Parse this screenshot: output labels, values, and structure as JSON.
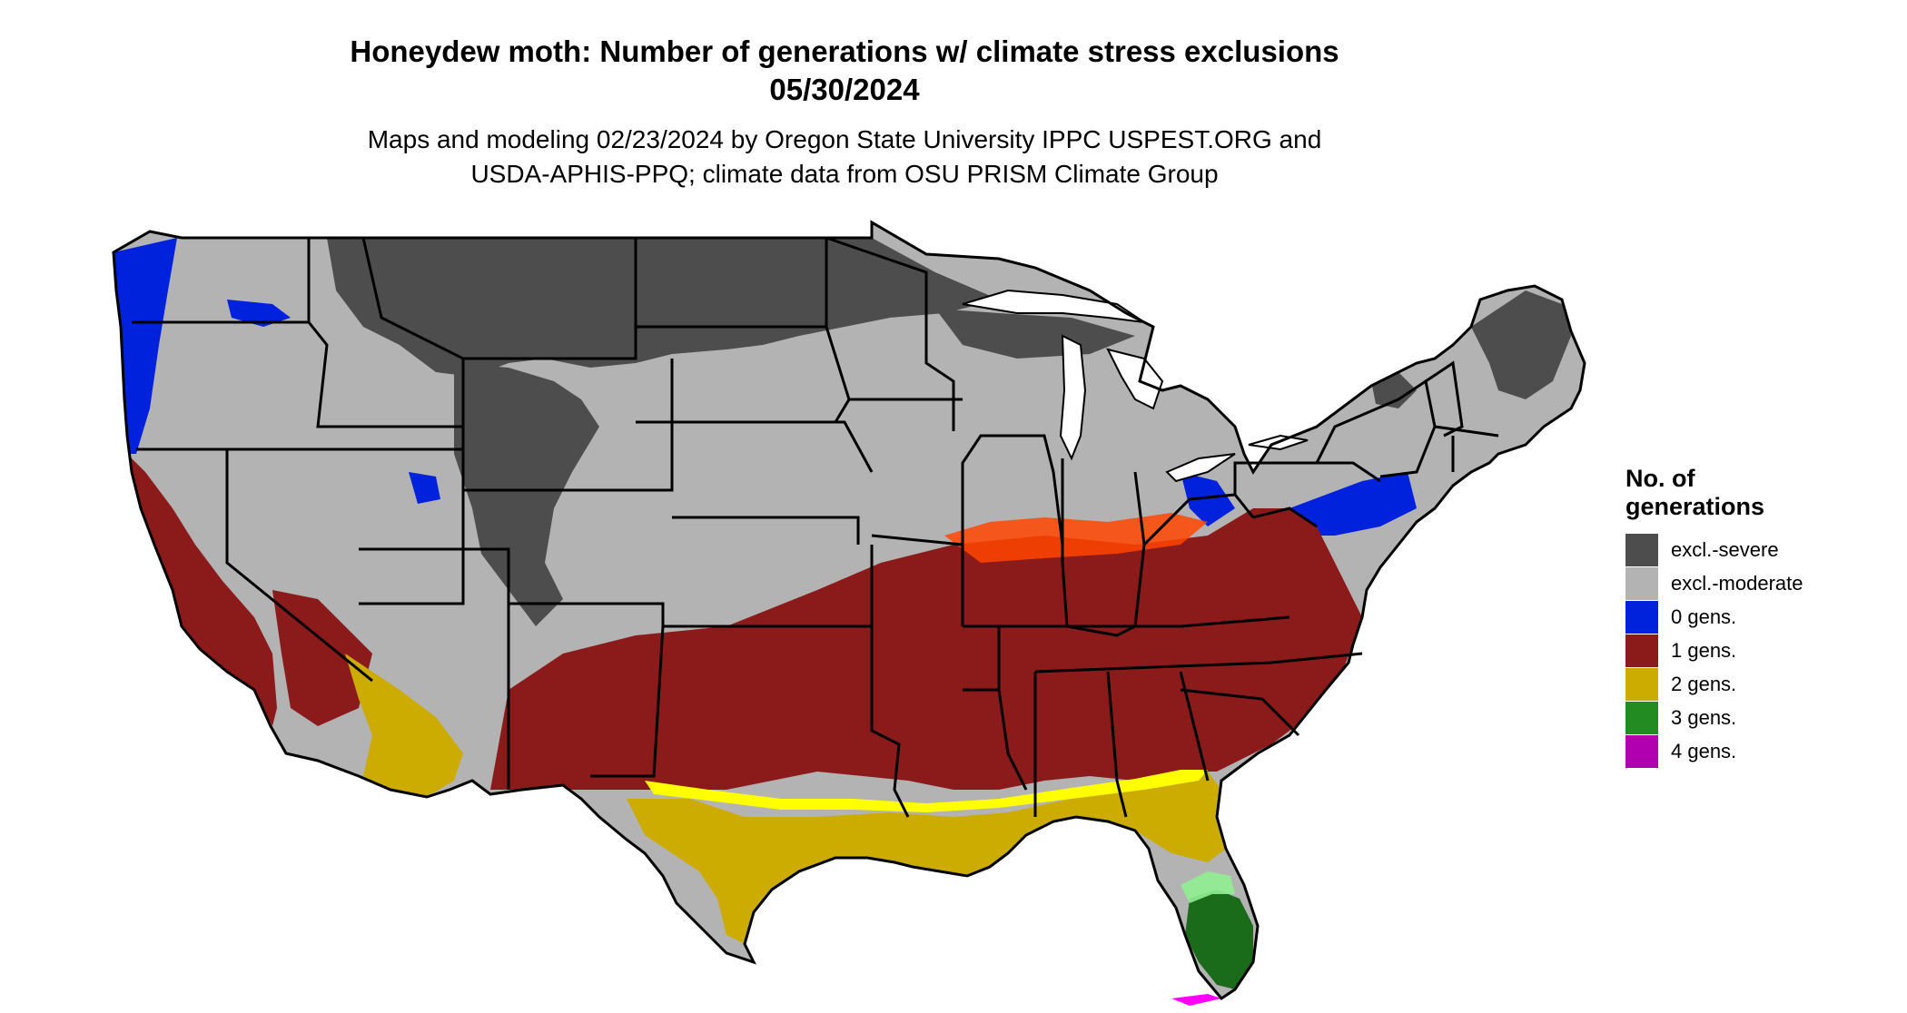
{
  "title_line1": "Honeydew moth: Number of generations w/ climate stress exclusions",
  "title_line2": "05/30/2024",
  "subtitle_line1": "Maps and modeling 02/23/2024 by Oregon State University IPPC USPEST.ORG and",
  "subtitle_line2": "USDA-APHIS-PPQ; climate data from OSU PRISM Climate Group",
  "legend": {
    "title_line1": "No. of",
    "title_line2": "generations",
    "items": [
      {
        "label": "excl.-severe",
        "color": "#4d4d4d"
      },
      {
        "label": "excl.-moderate",
        "color": "#b3b3b3"
      },
      {
        "label": "0 gens.",
        "color": "#0022dd"
      },
      {
        "label": "1 gens.",
        "color": "#8b1a1a"
      },
      {
        "label": "2 gens.",
        "color": "#ccac00"
      },
      {
        "label": "3 gens.",
        "color": "#228b22"
      },
      {
        "label": "4 gens.",
        "color": "#b000b0"
      }
    ]
  },
  "map_colors": {
    "land_moderate": "#b3b3b3",
    "excl_severe": "#4d4d4d",
    "zero_gens": "#0022dd",
    "one_gen": "#8b1a1a",
    "one_gen_edge": "#ff4500",
    "two_gens": "#ccac00",
    "two_gens_edge": "#ffff00",
    "three_gens": "#1a6b1a",
    "three_gens_edge": "#90ee90",
    "four_gens": "#ff00ff",
    "borders": "#000000"
  }
}
